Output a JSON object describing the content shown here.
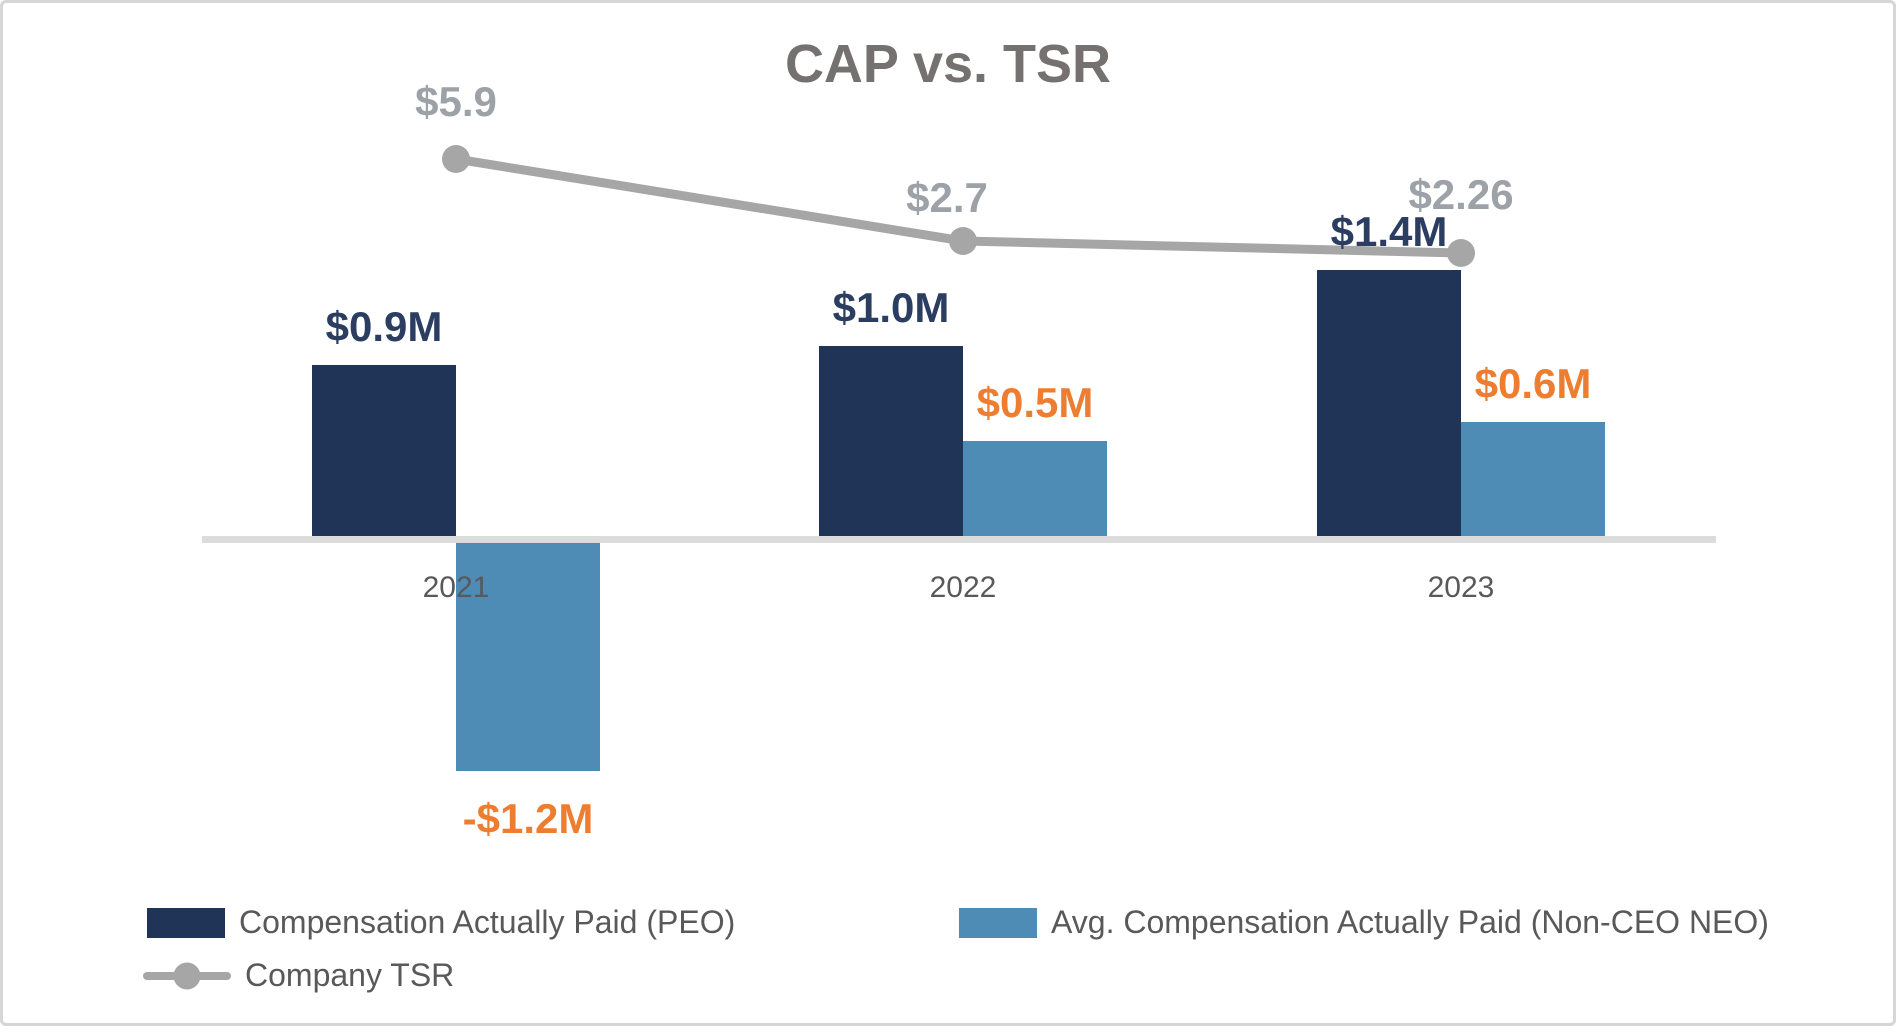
{
  "title": "CAP vs. TSR",
  "chart_data": {
    "type": "combo",
    "title": "CAP vs. TSR",
    "xlabel": "",
    "ylabel": "",
    "grid": false,
    "legend_position": "bottom-left",
    "background": "#FFFFFF",
    "axis_line_color": "#dcdcdc",
    "categories": [
      "2021",
      "2022",
      "2023"
    ],
    "series": [
      {
        "name": "Compensation Actually Paid (PEO)",
        "type": "bar",
        "unit": "$M",
        "values": [
          0.9,
          1.0,
          1.4
        ],
        "labels": [
          "$0.9M",
          "$1.0M",
          "$1.4M"
        ],
        "color": "#1F3456",
        "label_color": "#2B3D60"
      },
      {
        "name": "Avg. Compensation Actually Paid (Non-CEO NEO)",
        "type": "bar",
        "unit": "$M",
        "values": [
          -1.2,
          0.5,
          0.6
        ],
        "labels": [
          "-$1.2M",
          "$0.5M",
          "$0.6M"
        ],
        "color": "#4E8BB5",
        "label_color": "#ED7D31"
      },
      {
        "name": "Company TSR",
        "type": "line",
        "unit": "$",
        "values": [
          5.9,
          2.7,
          2.26
        ],
        "labels": [
          "$5.9",
          "$2.7",
          "$2.26"
        ],
        "color": "#A6A6A6",
        "label_color": "#9DA1A8"
      }
    ],
    "text_colors": {
      "title": "#767171",
      "category_labels": "#595959",
      "legend": "#595959"
    }
  }
}
